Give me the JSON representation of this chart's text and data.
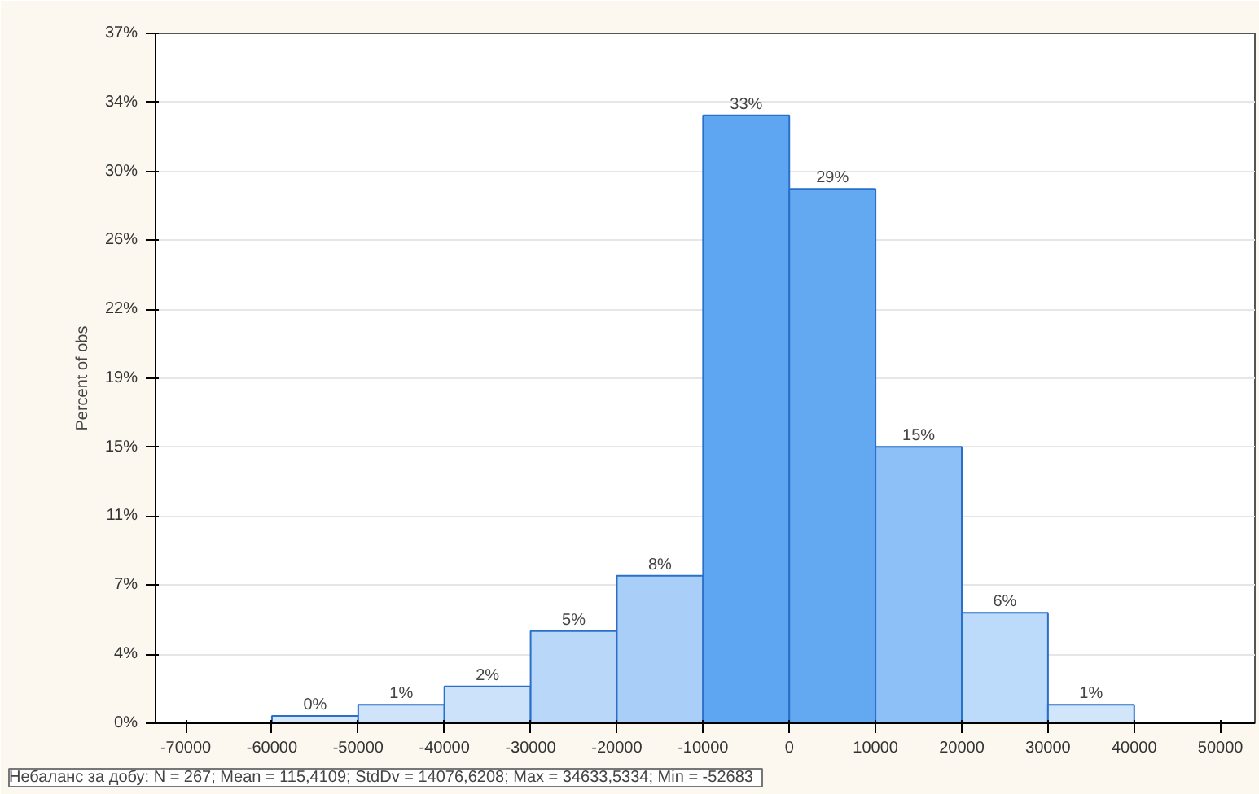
{
  "chart_data": {
    "type": "histogram",
    "ylabel": "Percent of obs",
    "bins": [
      -60000,
      -50000,
      -40000,
      -30000,
      -20000,
      -10000,
      0,
      10000,
      20000,
      30000,
      40000
    ],
    "values": [
      0.4,
      1,
      2,
      5,
      8,
      33,
      29,
      15,
      6,
      1
    ],
    "value_labels": [
      "0%",
      "1%",
      "2%",
      "5%",
      "8%",
      "33%",
      "29%",
      "15%",
      "6%",
      "1%"
    ],
    "colors": [
      "#d4e7fb",
      "#cfe4fb",
      "#cce2fb",
      "#b9d8f9",
      "#a9cff8",
      "#5ea6f2",
      "#63a9f2",
      "#8cc0f6",
      "#bcdaf9",
      "#d2e6fb"
    ],
    "xlim": [
      -73500,
      54000
    ],
    "ylim": [
      0,
      37.45
    ],
    "xticks": [
      -70000,
      -60000,
      -50000,
      -40000,
      -30000,
      -20000,
      -10000,
      0,
      10000,
      20000,
      30000,
      40000,
      50000
    ],
    "yticks": [
      {
        "value": 0,
        "label": "0%"
      },
      {
        "value": 3.75,
        "label": "4%"
      },
      {
        "value": 7.49,
        "label": "7%"
      },
      {
        "value": 11.24,
        "label": "11%"
      },
      {
        "value": 14.98,
        "label": "15%"
      },
      {
        "value": 18.73,
        "label": "19%"
      },
      {
        "value": 22.47,
        "label": "22%"
      },
      {
        "value": 26.22,
        "label": "26%"
      },
      {
        "value": 29.96,
        "label": "30%"
      },
      {
        "value": 33.71,
        "label": "34%"
      },
      {
        "value": 37.45,
        "label": "37%"
      }
    ],
    "grid": "y",
    "annotations": [
      "Небаланс за добу:   N = 267; Mean = 115,4109; StdDv = 14076,6208; Max = 34633,5334; Min = -52683"
    ]
  }
}
